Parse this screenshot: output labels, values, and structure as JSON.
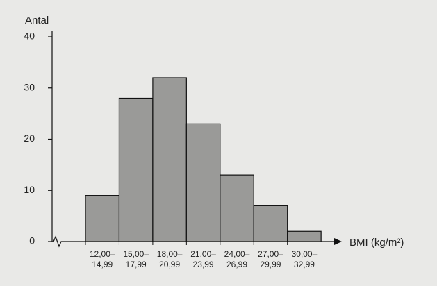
{
  "chart_data": {
    "type": "bar",
    "y_label": "Antal",
    "x_label": "BMI (kg/m²)",
    "categories": [
      [
        "12,00–",
        "14,99"
      ],
      [
        "15,00–",
        "17,99"
      ],
      [
        "18,00–",
        "20,99"
      ],
      [
        "21,00–",
        "23,99"
      ],
      [
        "24,00–",
        "26,99"
      ],
      [
        "27,00–",
        "29,99"
      ],
      [
        "30,00–",
        "32,99"
      ]
    ],
    "values": [
      9,
      28,
      32,
      23,
      13,
      7,
      2
    ],
    "color": "#9a9a98",
    "ylim": [
      0,
      40
    ],
    "yticks": [
      0,
      10,
      20,
      30,
      40
    ],
    "grid": false
  }
}
